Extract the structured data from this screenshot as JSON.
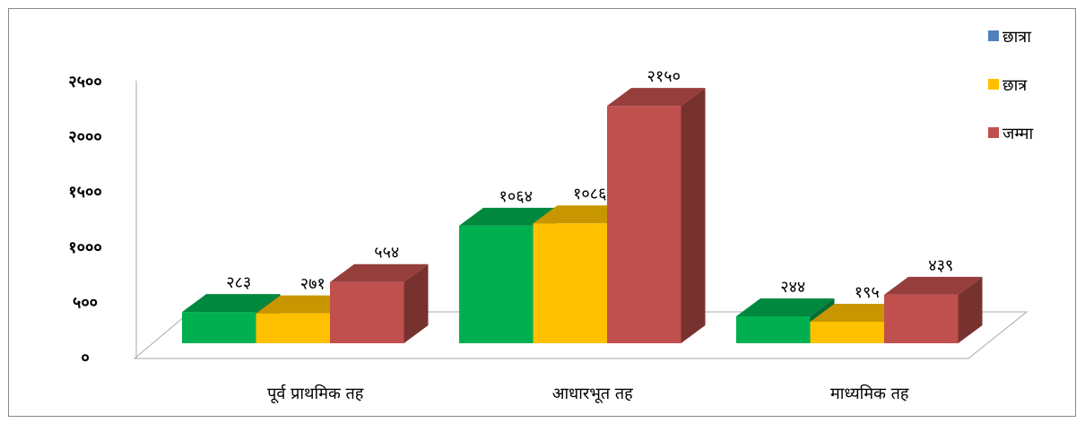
{
  "chart_data": {
    "type": "bar3d",
    "categories": [
      "पूर्व प्राथमिक तह",
      "आधारभूत तह",
      "माध्यमिक तह"
    ],
    "series": [
      {
        "name": "छात्रा",
        "color": "#00b050",
        "legend_color": "#4f81bd",
        "values": [
          283,
          1064,
          244
        ],
        "value_labels": [
          "२८३",
          "१०६४",
          "२४४"
        ]
      },
      {
        "name": "छात्र",
        "color": "#ffc000",
        "legend_color": "#ffc000",
        "values": [
          271,
          1086,
          195
        ],
        "value_labels": [
          "२७१",
          "१०८६",
          "१९५"
        ]
      },
      {
        "name": "जम्मा",
        "color": "#c0504d",
        "legend_color": "#c0504d",
        "values": [
          554,
          2150,
          439
        ],
        "value_labels": [
          "५५४",
          "२१५०",
          "४३९"
        ]
      }
    ],
    "ylim": [
      0,
      2500
    ],
    "yticks": [
      {
        "value": 0,
        "label": "०"
      },
      {
        "value": 500,
        "label": "५००"
      },
      {
        "value": 1000,
        "label": "१०००"
      },
      {
        "value": 1500,
        "label": "१५००"
      },
      {
        "value": 2000,
        "label": "२०००"
      },
      {
        "value": 2500,
        "label": "२५००"
      }
    ],
    "legend": "right"
  }
}
